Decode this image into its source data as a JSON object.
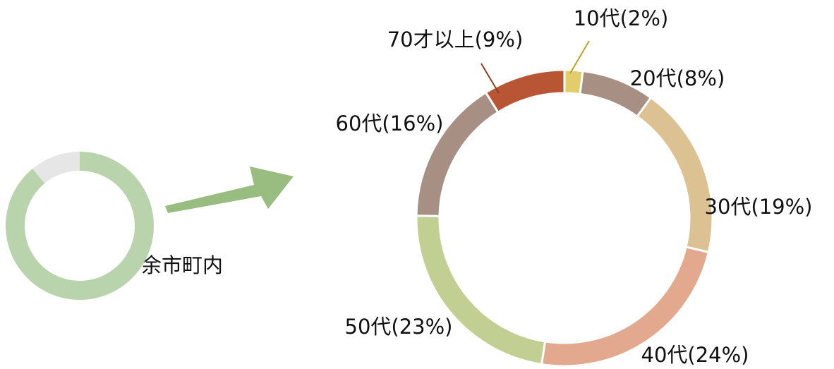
{
  "chart_data": [
    {
      "type": "donut",
      "label": "余市町内",
      "values": [
        89,
        11
      ],
      "colors": [
        "#b9d4ad",
        "#e6e6e6"
      ]
    },
    {
      "type": "donut",
      "values": [
        2,
        8,
        19,
        24,
        23,
        16,
        9
      ],
      "value_labels": [
        "10代(2%)",
        "20代(8%)",
        "30代(19%)",
        "40代(24%)",
        "50代(23%)",
        "60代(16%)",
        "70才以上(9%)"
      ],
      "colors": [
        "#e2cd6c",
        "#a88f84",
        "#dcc192",
        "#e3a98f",
        "#c2cf92",
        "#a88f84",
        "#b85535"
      ]
    }
  ]
}
